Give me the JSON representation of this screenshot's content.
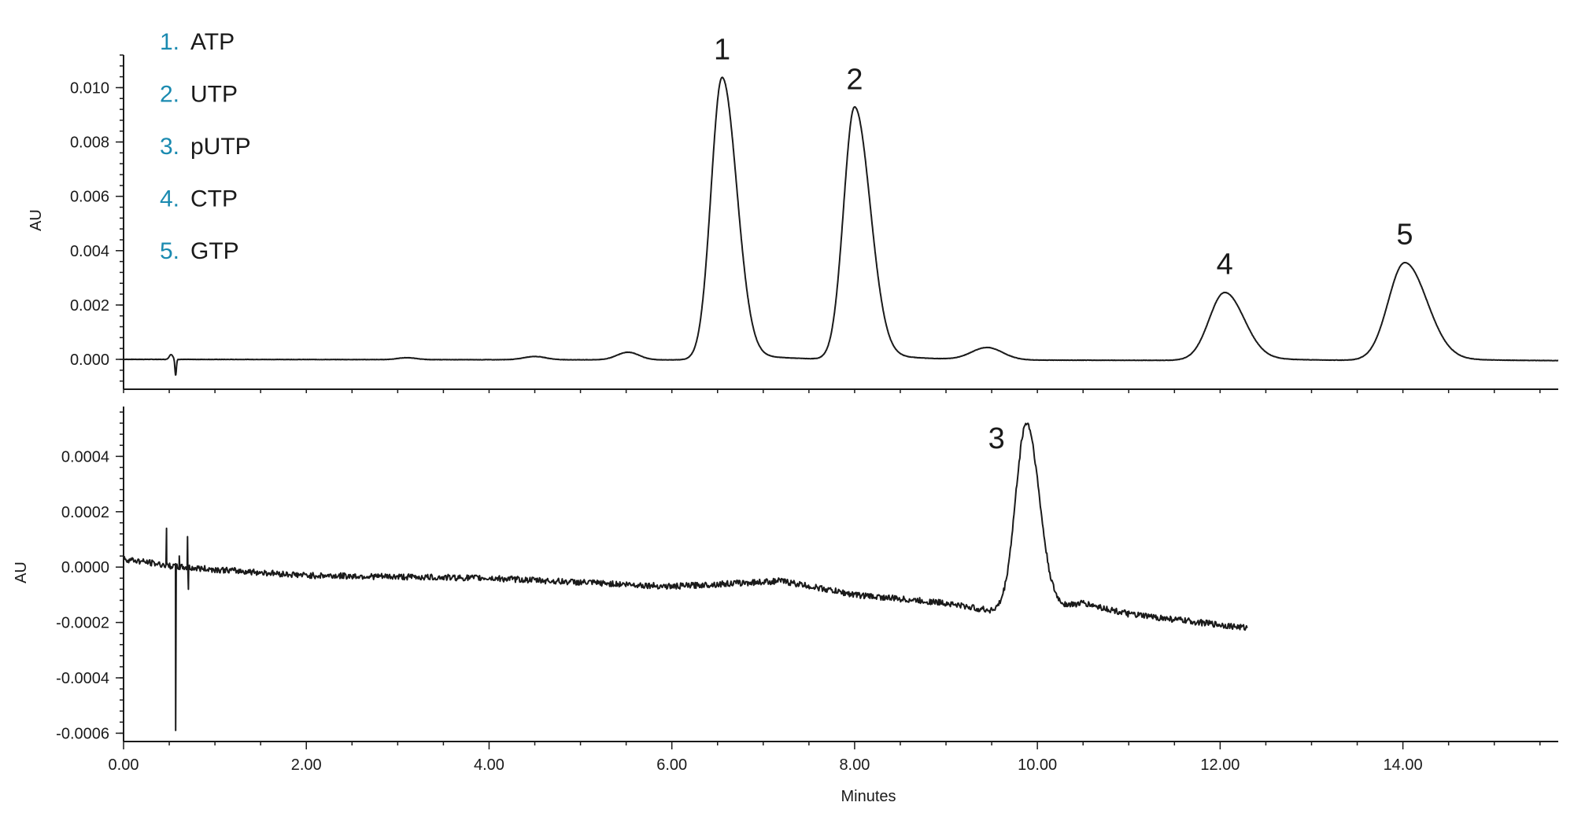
{
  "chart_data": [
    {
      "type": "line",
      "panel": "top",
      "xlabel": "",
      "ylabel": "AU",
      "xlim": [
        0,
        15.7
      ],
      "ylim": [
        -0.0011,
        0.0112
      ],
      "yticks": [
        0.0,
        0.002,
        0.004,
        0.006,
        0.008,
        0.01
      ],
      "ytick_labels": [
        "0.000",
        "0.002",
        "0.004",
        "0.006",
        "0.008",
        "0.010"
      ],
      "baseline": {
        "start": 0.0,
        "end": -5e-05
      },
      "dip": {
        "x": 0.57,
        "depth": -0.0006
      },
      "peaks": [
        {
          "label": "1",
          "x": 6.55,
          "y": 0.0104,
          "sigma_left": 0.12,
          "sigma_right": 0.16,
          "tail": 0.0004
        },
        {
          "label": "2",
          "x": 8.0,
          "y": 0.0093,
          "sigma_left": 0.12,
          "sigma_right": 0.17,
          "tail": 0.0004
        },
        {
          "label": "4",
          "x": 12.05,
          "y": 0.0025,
          "sigma_left": 0.17,
          "sigma_right": 0.21,
          "tail": 0.0002
        },
        {
          "label": "5",
          "x": 14.02,
          "y": 0.0036,
          "sigma_left": 0.18,
          "sigma_right": 0.24,
          "tail": 0.0002
        }
      ],
      "minor_peaks": [
        {
          "x": 3.1,
          "y": 7e-05,
          "sigma": 0.1
        },
        {
          "x": 4.5,
          "y": 0.00012,
          "sigma": 0.12
        },
        {
          "x": 5.52,
          "y": 0.00028,
          "sigma": 0.12
        },
        {
          "x": 9.45,
          "y": 0.00045,
          "sigma": 0.17
        }
      ]
    },
    {
      "type": "line",
      "panel": "bottom",
      "xlabel": "Minutes",
      "ylabel": "AU",
      "xlim": [
        0,
        15.7
      ],
      "ylim": [
        -0.00063,
        0.00058
      ],
      "yticks": [
        -0.0006,
        -0.0004,
        -0.0002,
        0.0,
        0.0002,
        0.0004
      ],
      "ytick_labels": [
        "-0.0006",
        "-0.0004",
        "-0.0002",
        "0.0000",
        "0.0002",
        "0.0004"
      ],
      "xticks": [
        0,
        2,
        4,
        6,
        8,
        10,
        12,
        14
      ],
      "xtick_labels": [
        "0.00",
        "2.00",
        "4.00",
        "6.00",
        "8.00",
        "10.00",
        "12.00",
        "14.00"
      ],
      "x_end": 12.3,
      "baseline_points": [
        [
          0,
          3e-05
        ],
        [
          0.6,
          0.0
        ],
        [
          2.0,
          -3e-05
        ],
        [
          4.0,
          -4e-05
        ],
        [
          6.0,
          -7e-05
        ],
        [
          7.2,
          -5e-05
        ],
        [
          8.0,
          -0.0001
        ],
        [
          9.0,
          -0.00013
        ],
        [
          9.7,
          -0.00017
        ],
        [
          10.5,
          -0.00013
        ],
        [
          11.0,
          -0.00017
        ],
        [
          12.3,
          -0.00022
        ]
      ],
      "spikes": [
        {
          "x": 0.47,
          "y": 0.00014
        },
        {
          "x": 0.57,
          "y": -0.00059
        },
        {
          "x": 0.61,
          "y": 4e-05
        },
        {
          "x": 0.7,
          "y": 0.00011
        },
        {
          "x": 0.71,
          "y": -8e-05
        }
      ],
      "peaks": [
        {
          "label": "3",
          "x": 9.88,
          "y": 0.00052,
          "sigma_left": 0.12,
          "sigma_right": 0.14
        }
      ]
    }
  ],
  "legend": [
    {
      "num": "1.",
      "name": "ATP"
    },
    {
      "num": "2.",
      "name": "UTP"
    },
    {
      "num": "3.",
      "name": "pUTP"
    },
    {
      "num": "4.",
      "name": "CTP"
    },
    {
      "num": "5.",
      "name": "GTP"
    }
  ],
  "colors": {
    "trace": "#1a1a1a",
    "legend_number": "#1a8ab0"
  }
}
